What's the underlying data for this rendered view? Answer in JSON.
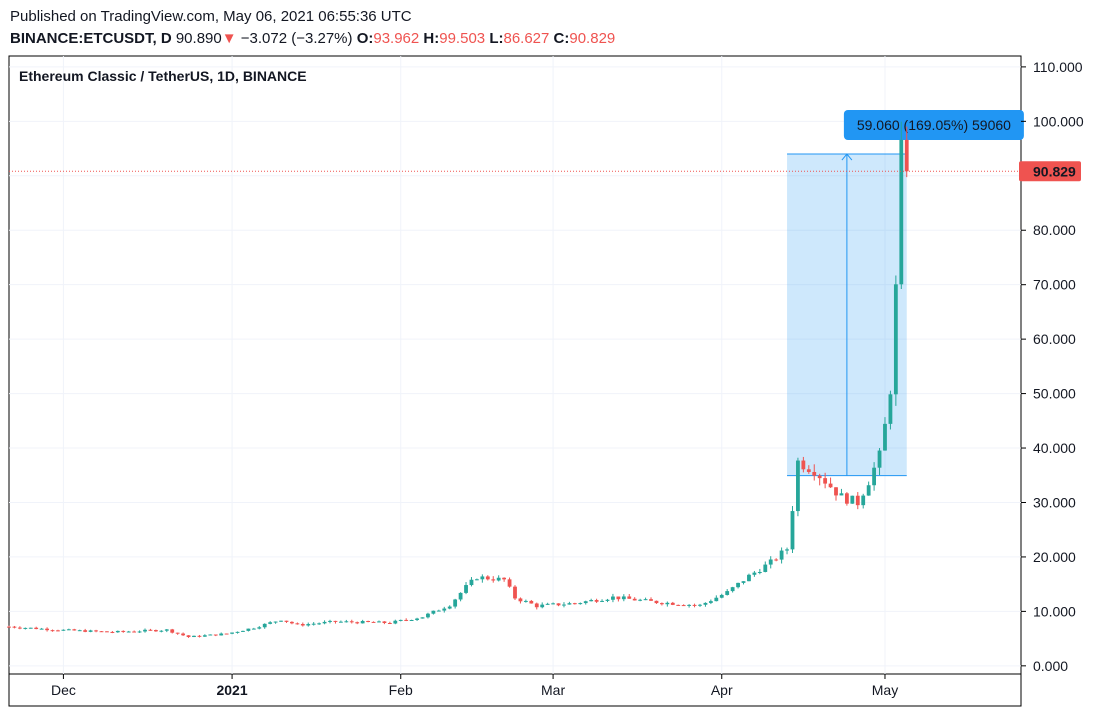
{
  "header": {
    "published": "Published on TradingView.com, May 06, 2021 06:55:36 UTC",
    "symbol": "BINANCE:ETCUSDT, D",
    "last": "90.890",
    "change": "−3.072 (−3.27%)",
    "o_label": "O:",
    "o_value": "93.962",
    "h_label": "H:",
    "h_value": "99.503",
    "l_label": "L:",
    "l_value": "86.627",
    "c_label": "C:",
    "c_value": "90.829"
  },
  "colors": {
    "up": "#26a69a",
    "down": "#ef5350",
    "measure": "#2196f3"
  },
  "chart_data": {
    "type": "candlestick",
    "title": "Ethereum Classic / TetherUS, 1D, BINANCE",
    "y_ticks": [
      "0.000",
      "10.000",
      "20.000",
      "30.000",
      "40.000",
      "50.000",
      "60.000",
      "70.000",
      "80.000",
      "90.000",
      "100.000",
      "110.000"
    ],
    "y_tick_values": [
      0,
      10,
      20,
      30,
      40,
      50,
      60,
      70,
      80,
      90,
      100,
      110
    ],
    "ylim": [
      -1.5,
      112
    ],
    "x_labels": [
      {
        "label": "Dec",
        "date": "2020-12-01",
        "bold": false
      },
      {
        "label": "2021",
        "date": "2021-01-01",
        "bold": true
      },
      {
        "label": "Feb",
        "date": "2021-02-01",
        "bold": false
      },
      {
        "label": "Mar",
        "date": "2021-03-01",
        "bold": false
      },
      {
        "label": "Apr",
        "date": "2021-04-01",
        "bold": false
      },
      {
        "label": "May",
        "date": "2021-05-01",
        "bold": false
      }
    ],
    "x_range": [
      "2020-11-21",
      "2021-05-26"
    ],
    "last_price_label": "90.829",
    "last_price": 90.829,
    "measure": {
      "label": "59.060 (169.05%) 59060",
      "from_date": "2021-04-13",
      "to_date": "2021-05-05",
      "low": 34.94,
      "high": 94.0
    },
    "keypoints": [
      [
        "2020-11-21",
        7.2
      ],
      [
        "2020-11-30",
        6.6
      ],
      [
        "2020-12-10",
        6.2
      ],
      [
        "2020-12-20",
        6.6
      ],
      [
        "2020-12-24",
        5.3
      ],
      [
        "2020-12-31",
        5.9
      ],
      [
        "2021-01-05",
        7.0
      ],
      [
        "2021-01-10",
        8.5
      ],
      [
        "2021-01-13",
        7.5
      ],
      [
        "2021-01-20",
        8.1
      ],
      [
        "2021-01-30",
        7.9
      ],
      [
        "2021-02-05",
        9.0
      ],
      [
        "2021-02-10",
        11.2
      ],
      [
        "2021-02-13",
        14.5
      ],
      [
        "2021-02-15",
        16.3
      ],
      [
        "2021-02-20",
        15.8
      ],
      [
        "2021-02-22",
        12.5
      ],
      [
        "2021-02-26",
        11.0
      ],
      [
        "2021-03-05",
        11.5
      ],
      [
        "2021-03-12",
        12.6
      ],
      [
        "2021-03-20",
        11.7
      ],
      [
        "2021-03-28",
        11.1
      ],
      [
        "2021-04-02",
        13.5
      ],
      [
        "2021-04-06",
        16.5
      ],
      [
        "2021-04-10",
        19.0
      ],
      [
        "2021-04-13",
        21.5
      ],
      [
        "2021-04-14",
        29.0
      ],
      [
        "2021-04-15",
        37.5
      ],
      [
        "2021-04-18",
        36.0
      ],
      [
        "2021-04-21",
        33.0
      ],
      [
        "2021-04-23",
        31.0
      ],
      [
        "2021-04-26",
        30.0
      ],
      [
        "2021-04-28",
        34.0
      ],
      [
        "2021-04-30",
        38.5
      ],
      [
        "2021-05-01",
        44.0
      ],
      [
        "2021-05-02",
        51.0
      ],
      [
        "2021-05-03",
        69.0
      ],
      [
        "2021-05-04",
        93.96
      ],
      [
        "2021-05-05",
        90.83
      ]
    ]
  }
}
